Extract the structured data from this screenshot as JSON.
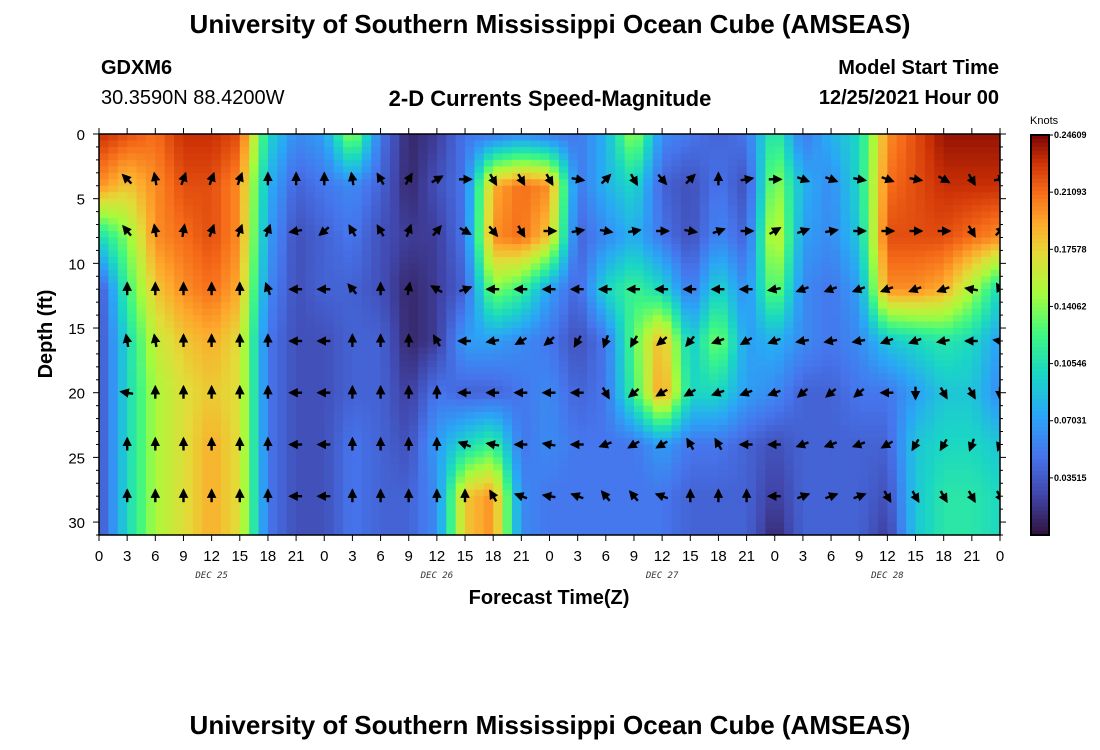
{
  "header": {
    "title": "University of Southern Mississippi Ocean Cube (AMSEAS)",
    "station": "GDXM6",
    "coordinates": "30.3590N  88.4200W",
    "subtitle": "2-D Currents Speed-Magnitude",
    "model_start_label": "Model Start Time",
    "model_start_value": "12/25/2021 Hour 00"
  },
  "footer": {
    "title": "University of Southern Mississippi Ocean Cube (AMSEAS)"
  },
  "chart_data": {
    "type": "heatmap",
    "title": "2-D Currents Speed-Magnitude",
    "xlabel": "Forecast Time(Z)",
    "ylabel": "Depth (ft)",
    "colorbar_label": "Knots",
    "colorbar_ticks": [
      "0.24609",
      "0.21093",
      "0.17578",
      "0.14062",
      "0.10546",
      "0.07031",
      "0.03515"
    ],
    "colorbar_values": [
      0.24609,
      0.21093,
      0.17578,
      0.14062,
      0.10546,
      0.07031,
      0.03515
    ],
    "colorbar_range": [
      0,
      0.2461
    ],
    "xlim": [
      0,
      96
    ],
    "ylim": [
      31,
      0
    ],
    "x_tick_labels": [
      "0",
      "3",
      "6",
      "9",
      "12",
      "15",
      "18",
      "21",
      "0",
      "3",
      "6",
      "9",
      "12",
      "15",
      "18",
      "21",
      "0",
      "3",
      "6",
      "9",
      "12",
      "15",
      "18",
      "21",
      "0",
      "3",
      "6",
      "9",
      "12",
      "15",
      "18",
      "21",
      "0"
    ],
    "y_ticks": [
      0,
      5,
      10,
      15,
      20,
      25,
      30
    ],
    "date_labels": [
      {
        "label": "DEC 25",
        "hour": 12
      },
      {
        "label": "DEC 26",
        "hour": 36
      },
      {
        "label": "DEC 27",
        "hour": 60
      },
      {
        "label": "DEC 28",
        "hour": 84
      }
    ],
    "speed_grid": {
      "hours": [
        0,
        3,
        6,
        9,
        12,
        15,
        18,
        21,
        24,
        27,
        30,
        33,
        36,
        39,
        42,
        45,
        48,
        51,
        54,
        57,
        60,
        63,
        66,
        69,
        72,
        75,
        78,
        81,
        84,
        87,
        90,
        93,
        96
      ],
      "depths": [
        0,
        4,
        8,
        12,
        16,
        20,
        24,
        28,
        31
      ],
      "values_knots": [
        [
          0.23,
          0.22,
          0.21,
          0.23,
          0.23,
          0.22,
          0.1,
          0.06,
          0.07,
          0.15,
          0.05,
          0.01,
          0.02,
          0.05,
          0.05,
          0.06,
          0.05,
          0.05,
          0.08,
          0.15,
          0.06,
          0.05,
          0.04,
          0.05,
          0.12,
          0.05,
          0.08,
          0.1,
          0.2,
          0.22,
          0.24,
          0.24,
          0.24
        ],
        [
          0.2,
          0.18,
          0.2,
          0.22,
          0.22,
          0.2,
          0.08,
          0.04,
          0.05,
          0.06,
          0.04,
          0.01,
          0.03,
          0.05,
          0.19,
          0.21,
          0.2,
          0.05,
          0.08,
          0.1,
          0.04,
          0.03,
          0.05,
          0.03,
          0.15,
          0.08,
          0.06,
          0.1,
          0.21,
          0.22,
          0.23,
          0.23,
          0.23
        ],
        [
          0.1,
          0.14,
          0.2,
          0.21,
          0.22,
          0.2,
          0.07,
          0.03,
          0.04,
          0.05,
          0.03,
          0.02,
          0.02,
          0.05,
          0.2,
          0.21,
          0.18,
          0.04,
          0.06,
          0.08,
          0.05,
          0.03,
          0.06,
          0.04,
          0.17,
          0.07,
          0.06,
          0.09,
          0.22,
          0.22,
          0.22,
          0.21,
          0.2
        ],
        [
          0.03,
          0.12,
          0.18,
          0.2,
          0.21,
          0.19,
          0.06,
          0.03,
          0.04,
          0.04,
          0.03,
          0.01,
          0.02,
          0.04,
          0.14,
          0.12,
          0.07,
          0.04,
          0.1,
          0.12,
          0.1,
          0.05,
          0.1,
          0.06,
          0.14,
          0.06,
          0.05,
          0.07,
          0.2,
          0.2,
          0.19,
          0.15,
          0.1
        ],
        [
          0.03,
          0.1,
          0.16,
          0.18,
          0.19,
          0.17,
          0.05,
          0.03,
          0.03,
          0.04,
          0.04,
          0.01,
          0.02,
          0.07,
          0.07,
          0.06,
          0.05,
          0.03,
          0.05,
          0.13,
          0.19,
          0.09,
          0.14,
          0.07,
          0.08,
          0.06,
          0.05,
          0.06,
          0.09,
          0.1,
          0.11,
          0.1,
          0.07
        ],
        [
          0.03,
          0.1,
          0.15,
          0.17,
          0.18,
          0.17,
          0.05,
          0.03,
          0.03,
          0.04,
          0.04,
          0.02,
          0.05,
          0.04,
          0.04,
          0.05,
          0.06,
          0.04,
          0.05,
          0.12,
          0.2,
          0.1,
          0.1,
          0.07,
          0.06,
          0.04,
          0.04,
          0.05,
          0.05,
          0.07,
          0.09,
          0.09,
          0.06
        ],
        [
          0.03,
          0.1,
          0.15,
          0.17,
          0.19,
          0.17,
          0.05,
          0.03,
          0.03,
          0.05,
          0.04,
          0.03,
          0.07,
          0.1,
          0.12,
          0.05,
          0.06,
          0.05,
          0.05,
          0.05,
          0.07,
          0.05,
          0.05,
          0.04,
          0.03,
          0.04,
          0.04,
          0.04,
          0.04,
          0.09,
          0.1,
          0.1,
          0.09
        ],
        [
          0.03,
          0.1,
          0.15,
          0.17,
          0.19,
          0.17,
          0.05,
          0.03,
          0.03,
          0.05,
          0.04,
          0.04,
          0.06,
          0.18,
          0.2,
          0.06,
          0.05,
          0.05,
          0.05,
          0.05,
          0.05,
          0.04,
          0.04,
          0.04,
          0.02,
          0.04,
          0.04,
          0.04,
          0.03,
          0.09,
          0.11,
          0.11,
          0.1
        ],
        [
          0.03,
          0.1,
          0.15,
          0.17,
          0.19,
          0.17,
          0.05,
          0.03,
          0.03,
          0.05,
          0.04,
          0.04,
          0.06,
          0.18,
          0.2,
          0.06,
          0.05,
          0.05,
          0.05,
          0.05,
          0.05,
          0.04,
          0.04,
          0.04,
          0.01,
          0.04,
          0.04,
          0.04,
          0.02,
          0.09,
          0.11,
          0.11,
          0.1
        ]
      ]
    },
    "vector_rows": {
      "depths": [
        3.5,
        7.5,
        12,
        16,
        20,
        24,
        28
      ],
      "hours": [
        3,
        6,
        9,
        12,
        15,
        18,
        21,
        24,
        27,
        30,
        33,
        36,
        39,
        42,
        45,
        48,
        51,
        54,
        57,
        60,
        63,
        66,
        69,
        72,
        75,
        78,
        81,
        84,
        87,
        90,
        93,
        96
      ],
      "direction_deg": [
        [
          315,
          350,
          20,
          20,
          20,
          0,
          0,
          0,
          350,
          330,
          30,
          60,
          90,
          150,
          150,
          150,
          100,
          45,
          150,
          140,
          45,
          0,
          80,
          90,
          110,
          110,
          100,
          110,
          100,
          120,
          150,
          80
        ],
        [
          320,
          350,
          10,
          20,
          20,
          20,
          260,
          230,
          330,
          330,
          20,
          40,
          120,
          140,
          150,
          90,
          80,
          100,
          80,
          90,
          100,
          70,
          90,
          60,
          70,
          80,
          90,
          90,
          90,
          90,
          150,
          45
        ],
        [
          0,
          0,
          0,
          0,
          0,
          340,
          270,
          270,
          320,
          0,
          10,
          300,
          70,
          270,
          270,
          270,
          270,
          270,
          270,
          270,
          270,
          270,
          270,
          260,
          250,
          250,
          250,
          250,
          250,
          250,
          280,
          330
        ],
        [
          350,
          350,
          0,
          0,
          0,
          0,
          270,
          270,
          0,
          0,
          0,
          330,
          270,
          260,
          240,
          230,
          210,
          200,
          210,
          230,
          220,
          250,
          240,
          250,
          260,
          260,
          260,
          250,
          250,
          260,
          270,
          280
        ],
        [
          280,
          0,
          0,
          0,
          0,
          0,
          270,
          270,
          0,
          0,
          0,
          0,
          270,
          270,
          270,
          270,
          270,
          150,
          230,
          240,
          240,
          250,
          250,
          250,
          230,
          230,
          230,
          270,
          180,
          150,
          150,
          180
        ],
        [
          0,
          0,
          0,
          0,
          0,
          0,
          270,
          270,
          0,
          0,
          0,
          0,
          290,
          280,
          270,
          280,
          270,
          250,
          240,
          240,
          330,
          330,
          270,
          270,
          250,
          250,
          250,
          240,
          210,
          210,
          200,
          200
        ],
        [
          0,
          0,
          0,
          0,
          0,
          0,
          270,
          270,
          0,
          0,
          0,
          0,
          0,
          330,
          290,
          280,
          290,
          320,
          320,
          290,
          0,
          0,
          0,
          270,
          70,
          70,
          70,
          150,
          150,
          150,
          150,
          150
        ]
      ]
    }
  }
}
